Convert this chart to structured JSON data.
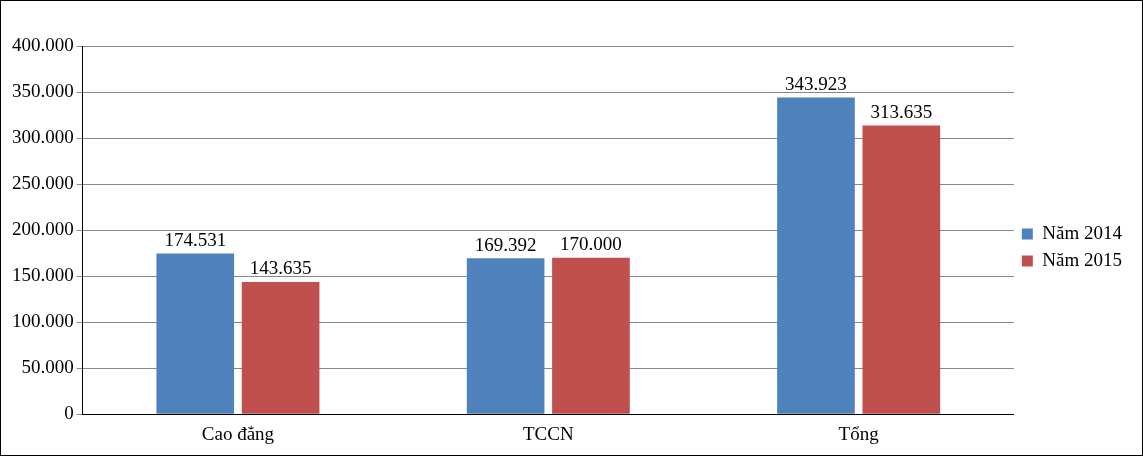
{
  "chart_data": {
    "type": "bar",
    "categories": [
      "Cao đẳng",
      "TCCN",
      "Tổng"
    ],
    "series": [
      {
        "name": "Năm 2014",
        "color": "#4f81bd",
        "values": [
          174531,
          169392,
          343923
        ],
        "value_labels": [
          "174.531",
          "169.392",
          "343.923"
        ]
      },
      {
        "name": "Năm 2015",
        "color": "#c0504d",
        "values": [
          143635,
          170000,
          313635
        ],
        "value_labels": [
          "143.635",
          "170.000",
          "313.635"
        ]
      }
    ],
    "ylim": [
      0,
      400000
    ],
    "yticks": [
      {
        "value": 0,
        "label": "0"
      },
      {
        "value": 50000,
        "label": "50.000"
      },
      {
        "value": 100000,
        "label": "100.000"
      },
      {
        "value": 150000,
        "label": "150.000"
      },
      {
        "value": 200000,
        "label": "200.000"
      },
      {
        "value": 250000,
        "label": "250.000"
      },
      {
        "value": 300000,
        "label": "300.000"
      },
      {
        "value": 350000,
        "label": "350.000"
      },
      {
        "value": 400000,
        "label": "400.000"
      }
    ],
    "grid": "y",
    "legend": "right"
  }
}
